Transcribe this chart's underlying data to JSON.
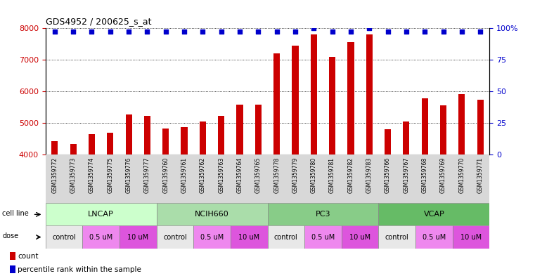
{
  "title": "GDS4952 / 200625_s_at",
  "samples": [
    "GSM1359772",
    "GSM1359773",
    "GSM1359774",
    "GSM1359775",
    "GSM1359776",
    "GSM1359777",
    "GSM1359760",
    "GSM1359761",
    "GSM1359762",
    "GSM1359763",
    "GSM1359764",
    "GSM1359765",
    "GSM1359778",
    "GSM1359779",
    "GSM1359780",
    "GSM1359781",
    "GSM1359782",
    "GSM1359783",
    "GSM1359766",
    "GSM1359767",
    "GSM1359768",
    "GSM1359769",
    "GSM1359770",
    "GSM1359771"
  ],
  "counts": [
    4420,
    4350,
    4650,
    4700,
    5280,
    5230,
    4840,
    4880,
    5050,
    5230,
    5580,
    5580,
    7200,
    7430,
    7800,
    7080,
    7550,
    7800,
    4800,
    5050,
    5770,
    5550,
    5920,
    5730
  ],
  "percentile_ranks": [
    97,
    97,
    97,
    97,
    97,
    97,
    97,
    97,
    97,
    97,
    97,
    97,
    97,
    97,
    100,
    97,
    97,
    100,
    97,
    97,
    97,
    97,
    97,
    97
  ],
  "cell_lines": [
    {
      "name": "LNCAP",
      "start": 0,
      "end": 6,
      "color": "#ccffcc"
    },
    {
      "name": "NCIH660",
      "start": 6,
      "end": 12,
      "color": "#aaddaa"
    },
    {
      "name": "PC3",
      "start": 12,
      "end": 18,
      "color": "#88cc88"
    },
    {
      "name": "VCAP",
      "start": 18,
      "end": 24,
      "color": "#66bb66"
    }
  ],
  "doses": [
    {
      "name": "control",
      "start": 0,
      "end": 2,
      "color": "#e8e8e8"
    },
    {
      "name": "0.5 uM",
      "start": 2,
      "end": 4,
      "color": "#ee88ee"
    },
    {
      "name": "10 uM",
      "start": 4,
      "end": 6,
      "color": "#dd55dd"
    },
    {
      "name": "control",
      "start": 6,
      "end": 8,
      "color": "#e8e8e8"
    },
    {
      "name": "0.5 uM",
      "start": 8,
      "end": 10,
      "color": "#ee88ee"
    },
    {
      "name": "10 uM",
      "start": 10,
      "end": 12,
      "color": "#dd55dd"
    },
    {
      "name": "control",
      "start": 12,
      "end": 14,
      "color": "#e8e8e8"
    },
    {
      "name": "0.5 uM",
      "start": 14,
      "end": 16,
      "color": "#ee88ee"
    },
    {
      "name": "10 uM",
      "start": 16,
      "end": 18,
      "color": "#dd55dd"
    },
    {
      "name": "control",
      "start": 18,
      "end": 20,
      "color": "#e8e8e8"
    },
    {
      "name": "0.5 uM",
      "start": 20,
      "end": 22,
      "color": "#ee88ee"
    },
    {
      "name": "10 uM",
      "start": 22,
      "end": 24,
      "color": "#dd55dd"
    }
  ],
  "bar_color": "#cc0000",
  "dot_color": "#0000cc",
  "ylim_left": [
    4000,
    8000
  ],
  "ylim_right": [
    0,
    100
  ],
  "yticks_left": [
    4000,
    5000,
    6000,
    7000,
    8000
  ],
  "yticks_right": [
    0,
    25,
    50,
    75,
    100
  ],
  "grid_color": "#000000",
  "background_color": "#ffffff",
  "tick_label_color_left": "#cc0000",
  "tick_label_color_right": "#0000cc",
  "xticklabel_bg": "#d8d8d8",
  "cell_line_label": "cell line",
  "dose_label": "dose",
  "legend_count": "count",
  "legend_percentile": "percentile rank within the sample"
}
